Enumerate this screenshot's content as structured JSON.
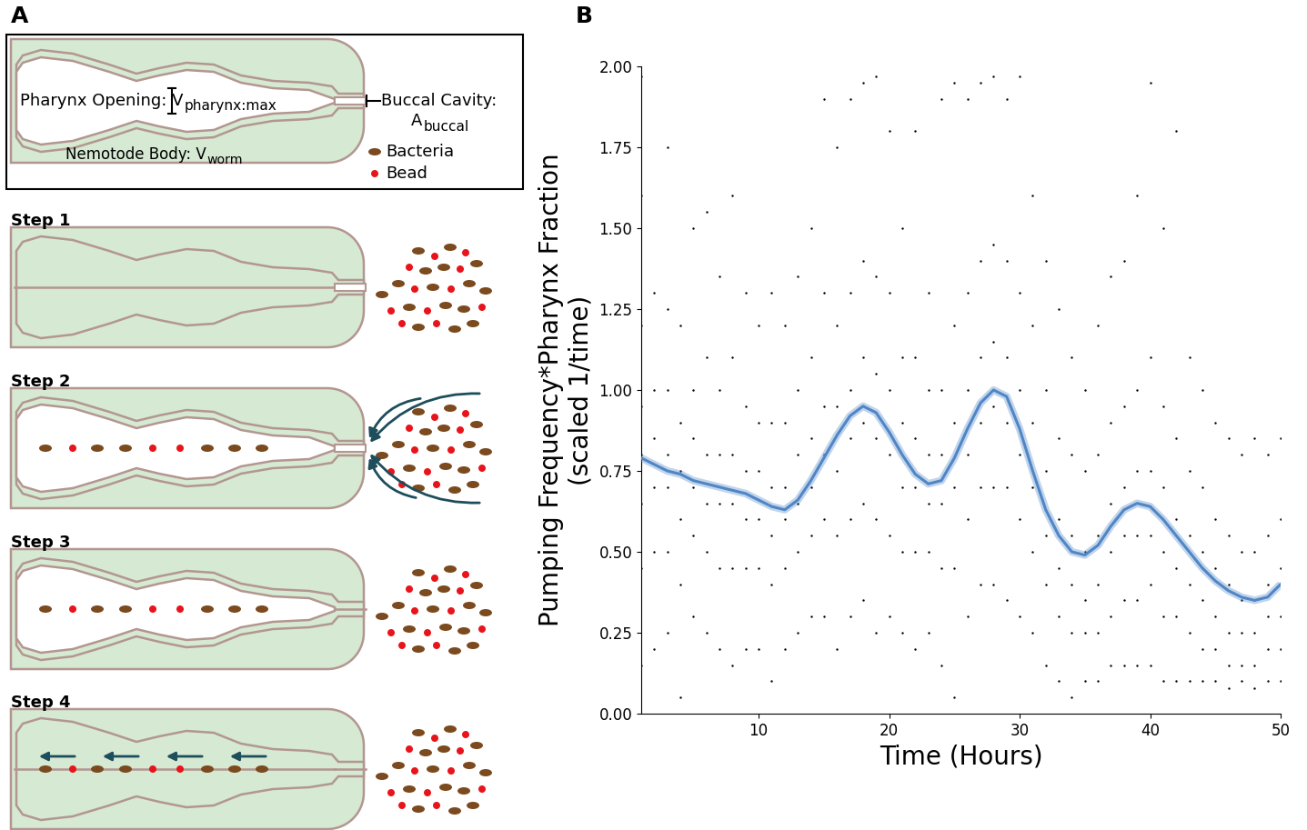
{
  "diagram": {
    "panel_labels": [
      "A",
      "B"
    ],
    "inset": {
      "pharynx": {
        "label": "Pharynx Opening: V",
        "subscript": "pharynx:max"
      },
      "buccal": {
        "label": "Buccal Cavity:",
        "symbol": "A",
        "subscript": "buccal"
      },
      "body": {
        "label": "Nemotode Body: V",
        "subscript": "worm"
      },
      "legend": [
        {
          "name": "Bacteria",
          "color": "#7b4a1e"
        },
        {
          "name": "Bead",
          "color": "#e8141b"
        }
      ]
    },
    "steps": [
      "Step 1",
      "Step 2",
      "Step 3",
      "Step 4"
    ]
  },
  "chart_data": {
    "type": "scatter",
    "xlabel": "Time (Hours)",
    "ylabel": "Pumping Frequency*Pharynx Fraction\n(scaled 1/time)",
    "xlim": [
      1,
      50
    ],
    "ylim": [
      0,
      2
    ],
    "xticks": [
      10,
      20,
      30,
      40,
      50
    ],
    "yticks": [
      {
        "value": 0,
        "label": "0.00"
      },
      {
        "value": 0.25,
        "label": "0.25"
      },
      {
        "value": 0.5,
        "label": "0.50"
      },
      {
        "value": 0.75,
        "label": "0.75"
      },
      {
        "value": 1.0,
        "label": "1.00"
      },
      {
        "value": 1.25,
        "label": "1.25"
      },
      {
        "value": 1.5,
        "label": "1.50"
      },
      {
        "value": 1.75,
        "label": "1.75"
      },
      {
        "value": 2.0,
        "label": "2.00"
      }
    ],
    "series": [
      {
        "type": "scatter",
        "color": "#000000",
        "x": [
          1,
          2,
          3,
          4,
          5,
          6,
          7,
          8,
          9,
          10,
          11,
          12,
          13,
          14,
          15,
          16,
          17,
          18,
          19,
          20,
          21,
          22,
          23,
          24,
          25,
          26,
          27,
          28,
          29,
          30,
          31,
          32,
          33,
          34,
          35,
          36,
          37,
          38,
          39,
          40,
          41,
          42,
          43,
          44,
          45,
          46,
          47,
          48,
          49,
          50
        ],
        "values": [
          [
            0.15,
            0.45,
            0.65,
            0.8,
            0.95,
            1.2,
            1.6,
            1.97
          ],
          [
            0.2,
            0.5,
            0.7,
            0.85,
            1.0,
            1.3
          ],
          [
            0.25,
            0.5,
            0.7,
            0.8,
            1.0,
            1.25,
            1.75
          ],
          [
            0.05,
            0.4,
            0.6,
            0.75,
            0.9,
            1.2
          ],
          [
            0.3,
            0.55,
            0.7,
            0.85,
            1.0,
            1.5
          ],
          [
            0.25,
            0.5,
            0.65,
            0.8,
            1.1,
            1.55
          ],
          [
            0.2,
            0.45,
            0.65,
            0.8,
            1.0,
            1.35
          ],
          [
            0.15,
            0.45,
            0.65,
            0.8,
            1.1,
            1.6
          ],
          [
            0.2,
            0.45,
            0.6,
            0.75,
            0.95,
            1.3
          ],
          [
            0.2,
            0.45,
            0.6,
            0.75,
            0.9,
            1.2
          ],
          [
            0.1,
            0.4,
            0.55,
            0.7,
            0.9,
            1.3
          ],
          [
            0.2,
            0.45,
            0.6,
            0.7,
            0.9,
            1.2
          ],
          [
            0.25,
            0.5,
            0.65,
            0.8,
            1.0,
            1.35
          ],
          [
            0.3,
            0.55,
            0.7,
            0.85,
            1.1,
            1.5
          ],
          [
            0.3,
            0.6,
            0.8,
            0.95,
            1.3,
            1.9
          ],
          [
            0.2,
            0.55,
            0.75,
            0.95,
            1.2,
            1.75
          ],
          [
            0.3,
            0.6,
            0.85,
            1.0,
            1.3,
            1.9
          ],
          [
            0.35,
            0.65,
            0.9,
            1.1,
            1.4,
            1.95
          ],
          [
            0.25,
            0.6,
            0.85,
            1.05,
            1.35,
            1.97
          ],
          [
            0.3,
            0.55,
            0.8,
            1.0,
            1.3,
            1.8
          ],
          [
            0.25,
            0.5,
            0.7,
            0.9,
            1.1,
            1.5
          ],
          [
            0.2,
            0.5,
            0.7,
            0.85,
            1.1,
            1.8
          ],
          [
            0.25,
            0.5,
            0.65,
            0.8,
            1.0,
            1.3
          ],
          [
            0.15,
            0.45,
            0.65,
            0.8,
            1.0,
            1.9
          ],
          [
            0.05,
            0.45,
            0.7,
            0.9,
            1.2,
            1.95
          ],
          [
            0.3,
            0.6,
            0.8,
            1.0,
            1.3,
            1.9
          ],
          [
            0.4,
            0.7,
            0.9,
            1.1,
            1.4,
            1.95
          ],
          [
            0.4,
            0.7,
            0.95,
            1.15,
            1.45,
            1.97
          ],
          [
            0.35,
            0.7,
            0.9,
            1.1,
            1.4,
            1.9
          ],
          [
            0.3,
            0.6,
            0.8,
            1.0,
            1.3,
            1.97
          ],
          [
            0.25,
            0.5,
            0.7,
            0.9,
            1.2,
            1.6
          ],
          [
            0.15,
            0.4,
            0.55,
            0.75,
            1.0,
            1.4
          ],
          [
            0.1,
            0.3,
            0.45,
            0.6,
            0.85,
            1.25
          ],
          [
            0.05,
            0.25,
            0.4,
            0.55,
            0.8,
            1.1
          ],
          [
            0.1,
            0.25,
            0.35,
            0.5,
            0.75,
            1.0
          ],
          [
            0.1,
            0.25,
            0.4,
            0.55,
            0.8,
            1.2
          ],
          [
            0.15,
            0.3,
            0.5,
            0.65,
            0.9,
            1.35
          ],
          [
            0.15,
            0.35,
            0.55,
            0.7,
            0.95,
            1.4
          ],
          [
            0.15,
            0.35,
            0.55,
            0.75,
            1.0,
            1.6
          ],
          [
            0.15,
            0.4,
            0.55,
            0.75,
            1.1,
            1.95
          ],
          [
            0.1,
            0.3,
            0.5,
            0.7,
            0.95,
            1.5
          ],
          [
            0.1,
            0.3,
            0.45,
            0.6,
            0.85,
            1.8
          ],
          [
            0.1,
            0.25,
            0.4,
            0.55,
            0.75,
            1.1
          ],
          [
            0.1,
            0.2,
            0.35,
            0.5,
            0.7,
            1.0
          ],
          [
            0.1,
            0.2,
            0.3,
            0.45,
            0.6,
            0.9
          ],
          [
            0.08,
            0.15,
            0.25,
            0.4,
            0.55,
            0.85
          ],
          [
            0.1,
            0.15,
            0.25,
            0.35,
            0.5,
            0.8
          ],
          [
            0.08,
            0.15,
            0.25,
            0.35,
            0.5,
            0.85
          ],
          [
            0.1,
            0.2,
            0.3,
            0.4,
            0.55,
            0.8
          ],
          [
            0.1,
            0.2,
            0.3,
            0.45,
            0.6,
            0.85
          ]
        ]
      },
      {
        "type": "line",
        "color": "#4f86c6",
        "x": [
          1,
          2,
          3,
          4,
          5,
          6,
          7,
          8,
          9,
          10,
          11,
          12,
          13,
          14,
          15,
          16,
          17,
          18,
          19,
          20,
          21,
          22,
          23,
          24,
          25,
          26,
          27,
          28,
          29,
          30,
          31,
          32,
          33,
          34,
          35,
          36,
          37,
          38,
          39,
          40,
          41,
          42,
          43,
          44,
          45,
          46,
          47,
          48,
          49,
          50
        ],
        "values": [
          0.79,
          0.77,
          0.75,
          0.74,
          0.72,
          0.71,
          0.7,
          0.69,
          0.68,
          0.66,
          0.64,
          0.63,
          0.66,
          0.72,
          0.79,
          0.86,
          0.92,
          0.95,
          0.93,
          0.87,
          0.8,
          0.74,
          0.71,
          0.72,
          0.79,
          0.88,
          0.96,
          1.0,
          0.98,
          0.88,
          0.75,
          0.63,
          0.55,
          0.5,
          0.49,
          0.52,
          0.58,
          0.63,
          0.65,
          0.64,
          0.6,
          0.55,
          0.5,
          0.45,
          0.41,
          0.38,
          0.36,
          0.35,
          0.36,
          0.4
        ]
      }
    ]
  }
}
